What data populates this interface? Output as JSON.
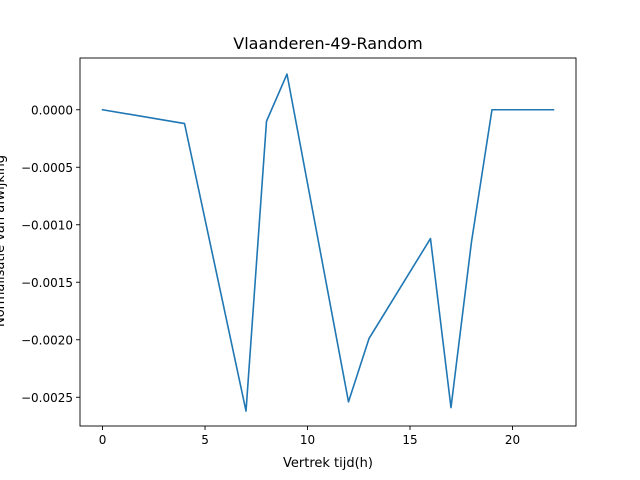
{
  "chart_data": {
    "type": "line",
    "title": "Vlaanderen-49-Random",
    "xlabel": "Vertrek tijd(h)",
    "ylabel": "Normalisatie van afwijking",
    "xlim": [
      -1.1,
      23.1
    ],
    "ylim": [
      -0.00275,
      0.00045
    ],
    "x_ticks": [
      0,
      5,
      10,
      15,
      20
    ],
    "x_tick_labels": [
      "0",
      "5",
      "10",
      "15",
      "20"
    ],
    "y_ticks": [
      0.0,
      -0.0005,
      -0.001,
      -0.0015,
      -0.002,
      -0.0025
    ],
    "y_tick_labels": [
      "0.0000",
      "−0.0005",
      "−0.0010",
      "−0.0015",
      "−0.0020",
      "−0.0025"
    ],
    "grid": false,
    "series": [
      {
        "color": "#1f77b4",
        "x": [
          0,
          4,
          7,
          8,
          9,
          12,
          13,
          16,
          17,
          18,
          19,
          22
        ],
        "y": [
          0.0,
          -0.00012,
          -0.00262,
          -0.0001,
          0.00031,
          -0.00254,
          -0.00199,
          -0.00112,
          -0.00259,
          -0.00115,
          0.0,
          0.0
        ]
      }
    ]
  }
}
